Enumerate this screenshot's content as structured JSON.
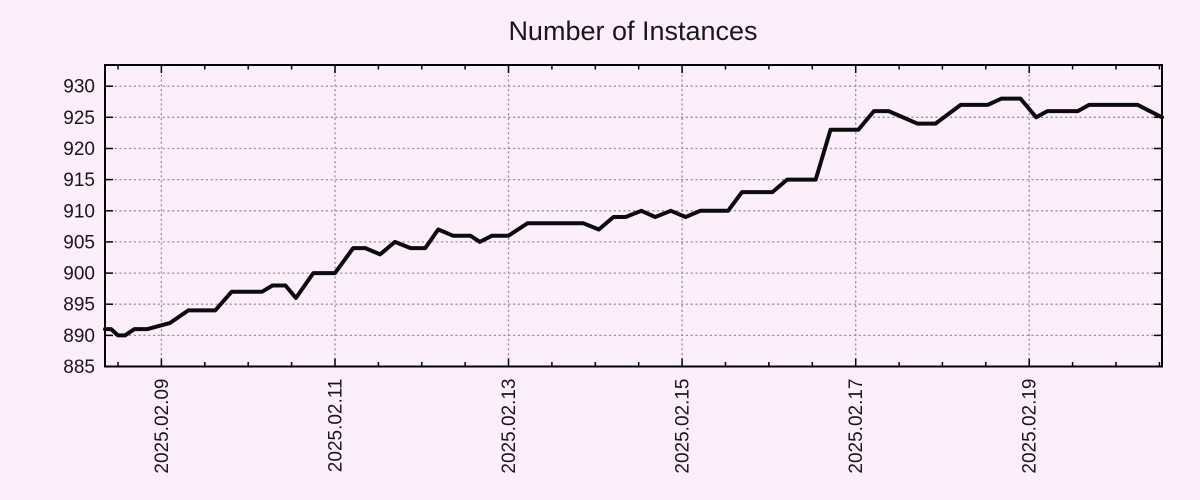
{
  "title": "Number of Instances",
  "colors": {
    "background": "#fceffb",
    "line": "#0d0b0d",
    "grid": "#9a949a",
    "axis": "#000000",
    "text": "#1a161a"
  },
  "chart_data": {
    "type": "line",
    "title": "Number of Instances",
    "xlabel": "",
    "ylabel": "",
    "legend": "none",
    "grid": "dotted",
    "x_unit": "day of February 2025 (fractional)",
    "xlim": [
      8.35,
      20.53
    ],
    "ylim": [
      885,
      933.4
    ],
    "y_ticks": [
      885,
      890,
      895,
      900,
      905,
      910,
      915,
      920,
      925,
      930
    ],
    "x_major_ticks": [
      {
        "t": 9,
        "label": "2025.02.09"
      },
      {
        "t": 11,
        "label": "2025.02.11"
      },
      {
        "t": 13,
        "label": "2025.02.13"
      },
      {
        "t": 15,
        "label": "2025.02.15"
      },
      {
        "t": 17,
        "label": "2025.02.17"
      },
      {
        "t": 19,
        "label": "2025.02.19"
      }
    ],
    "x_minor_step": 0.5,
    "series": [
      {
        "name": "instances",
        "points": [
          [
            8.35,
            891
          ],
          [
            8.42,
            891
          ],
          [
            8.5,
            890
          ],
          [
            8.58,
            890
          ],
          [
            8.69,
            891
          ],
          [
            8.84,
            891
          ],
          [
            9.1,
            892
          ],
          [
            9.31,
            894
          ],
          [
            9.62,
            894
          ],
          [
            9.81,
            897
          ],
          [
            10.16,
            897
          ],
          [
            10.28,
            898
          ],
          [
            10.43,
            898
          ],
          [
            10.55,
            896
          ],
          [
            10.75,
            900
          ],
          [
            11.0,
            900
          ],
          [
            11.21,
            904
          ],
          [
            11.35,
            904
          ],
          [
            11.52,
            903
          ],
          [
            11.69,
            905
          ],
          [
            11.87,
            904
          ],
          [
            12.04,
            904
          ],
          [
            12.19,
            907
          ],
          [
            12.36,
            906
          ],
          [
            12.56,
            906
          ],
          [
            12.67,
            905
          ],
          [
            12.81,
            906
          ],
          [
            13.0,
            906
          ],
          [
            13.22,
            908
          ],
          [
            13.86,
            908
          ],
          [
            14.04,
            907
          ],
          [
            14.21,
            909
          ],
          [
            14.35,
            909
          ],
          [
            14.53,
            910
          ],
          [
            14.69,
            909
          ],
          [
            14.87,
            910
          ],
          [
            15.04,
            909
          ],
          [
            15.21,
            910
          ],
          [
            15.53,
            910
          ],
          [
            15.69,
            913
          ],
          [
            16.04,
            913
          ],
          [
            16.21,
            915
          ],
          [
            16.54,
            915
          ],
          [
            16.71,
            923
          ],
          [
            17.03,
            923
          ],
          [
            17.21,
            926
          ],
          [
            17.38,
            926
          ],
          [
            17.71,
            924
          ],
          [
            17.92,
            924
          ],
          [
            18.21,
            927
          ],
          [
            18.52,
            927
          ],
          [
            18.68,
            928
          ],
          [
            18.9,
            928
          ],
          [
            19.08,
            925
          ],
          [
            19.21,
            926
          ],
          [
            19.56,
            926
          ],
          [
            19.69,
            927
          ],
          [
            20.25,
            927
          ],
          [
            20.53,
            925
          ]
        ]
      }
    ]
  }
}
